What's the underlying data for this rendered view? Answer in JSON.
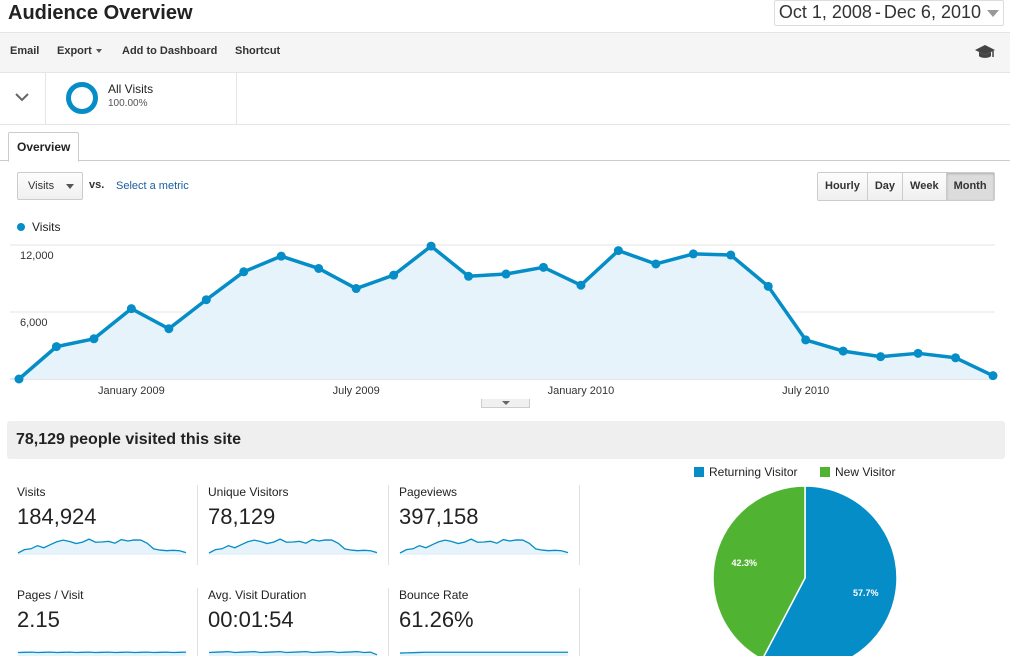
{
  "page": {
    "title": "Audience Overview",
    "date_start": "Oct 1, 2008",
    "date_sep": "-",
    "date_end": "Dec 6, 2010"
  },
  "toolbar": {
    "email": "Email",
    "export": "Export",
    "add_to_dashboard": "Add to Dashboard",
    "shortcut": "Shortcut",
    "icon": "graduation-cap-icon"
  },
  "segment": {
    "name": "All Visits",
    "percent": "100.00%",
    "color": "#058dc7"
  },
  "tabs": [
    {
      "label": "Overview",
      "active": true
    }
  ],
  "graph_controls": {
    "metric": "Visits",
    "vs": "vs.",
    "select_metric": "Select a metric",
    "granularity": [
      "Hourly",
      "Day",
      "Week",
      "Month"
    ],
    "active_granularity": "Month"
  },
  "summary": {
    "headline": "78,129 people visited this site"
  },
  "kpis": [
    {
      "label": "Visits",
      "value": "184,924"
    },
    {
      "label": "Unique Visitors",
      "value": "78,129"
    },
    {
      "label": "Pageviews",
      "value": "397,158"
    },
    {
      "label": "Pages / Visit",
      "value": "2.15"
    },
    {
      "label": "Avg. Visit Duration",
      "value": "00:01:54"
    },
    {
      "label": "Bounce Rate",
      "value": "61.26%"
    }
  ],
  "colors": {
    "line": "#058dc7",
    "fill": "#e6f3fa",
    "returning": "#058dc7",
    "new": "#50b432"
  },
  "chart_data": [
    {
      "type": "area",
      "series": [
        {
          "name": "Visits",
          "values": [
            0,
            2900,
            3600,
            6300,
            4500,
            7100,
            9600,
            11000,
            9900,
            8100,
            9300,
            11900,
            9200,
            9400,
            10000,
            8400,
            11500,
            10300,
            11200,
            11100,
            8300,
            3500,
            2500,
            2000,
            2300,
            1900,
            300
          ]
        }
      ],
      "x": [
        "2008-10",
        "2008-11",
        "2008-12",
        "2009-01",
        "2009-02",
        "2009-03",
        "2009-04",
        "2009-05",
        "2009-06",
        "2009-07",
        "2009-08",
        "2009-09",
        "2009-10",
        "2009-11",
        "2009-12",
        "2010-01",
        "2010-02",
        "2010-03",
        "2010-04",
        "2010-05",
        "2010-06",
        "2010-07",
        "2010-08",
        "2010-09",
        "2010-10",
        "2010-11",
        "2010-12"
      ],
      "x_tick_labels": [
        "January 2009",
        "July 2009",
        "January 2010",
        "July 2010"
      ],
      "y_tick_labels": [
        "12,000",
        "6,000"
      ],
      "ylim": [
        0,
        12000
      ],
      "grid": true,
      "legend": "top-left"
    },
    {
      "type": "pie",
      "categories": [
        "Returning Visitor",
        "New Visitor"
      ],
      "values": [
        57.7,
        42.3
      ],
      "data_labels": [
        "57.7%",
        "42.3%"
      ],
      "legend": "top"
    }
  ]
}
